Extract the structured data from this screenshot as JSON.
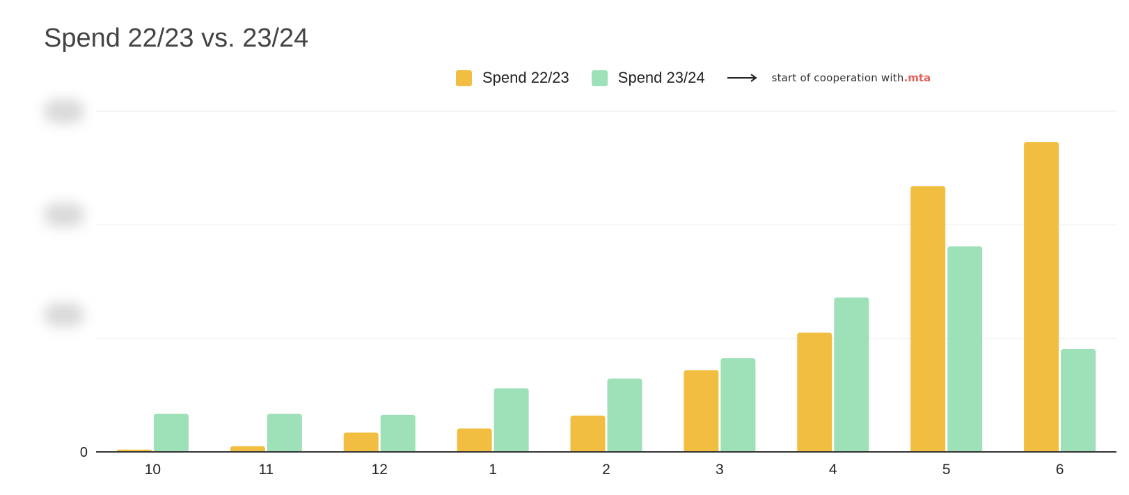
{
  "chart_data": {
    "type": "bar",
    "title": "Spend 22/23 vs. 23/24",
    "categories": [
      "10",
      "11",
      "12",
      "1",
      "2",
      "3",
      "4",
      "5",
      "6"
    ],
    "series": [
      {
        "name": "Spend 22/23",
        "color": "#F2BE41",
        "values": [
          0.1,
          0.25,
          0.85,
          1.03,
          1.6,
          3.6,
          5.25,
          11.7,
          13.65
        ]
      },
      {
        "name": "Spend 23/24",
        "color": "#9EE0B7",
        "values": [
          1.68,
          1.68,
          1.63,
          2.8,
          3.23,
          4.13,
          6.8,
          9.05,
          4.53
        ]
      }
    ],
    "y_ticks": [
      {
        "value": 0,
        "label": "0"
      },
      {
        "value": 5,
        "label": ""
      },
      {
        "value": 10,
        "label": ""
      },
      {
        "value": 15,
        "label": ""
      }
    ],
    "ylim": [
      0,
      15
    ],
    "y_tick_labels_obscured": true,
    "grid": true,
    "legend_position": "top-center",
    "legend_note": {
      "text": "start of cooperation with ",
      "brand": ".mta",
      "brand_color": "#E8605A",
      "icon": "right-arrow-icon"
    },
    "xlabel": "",
    "ylabel": ""
  }
}
